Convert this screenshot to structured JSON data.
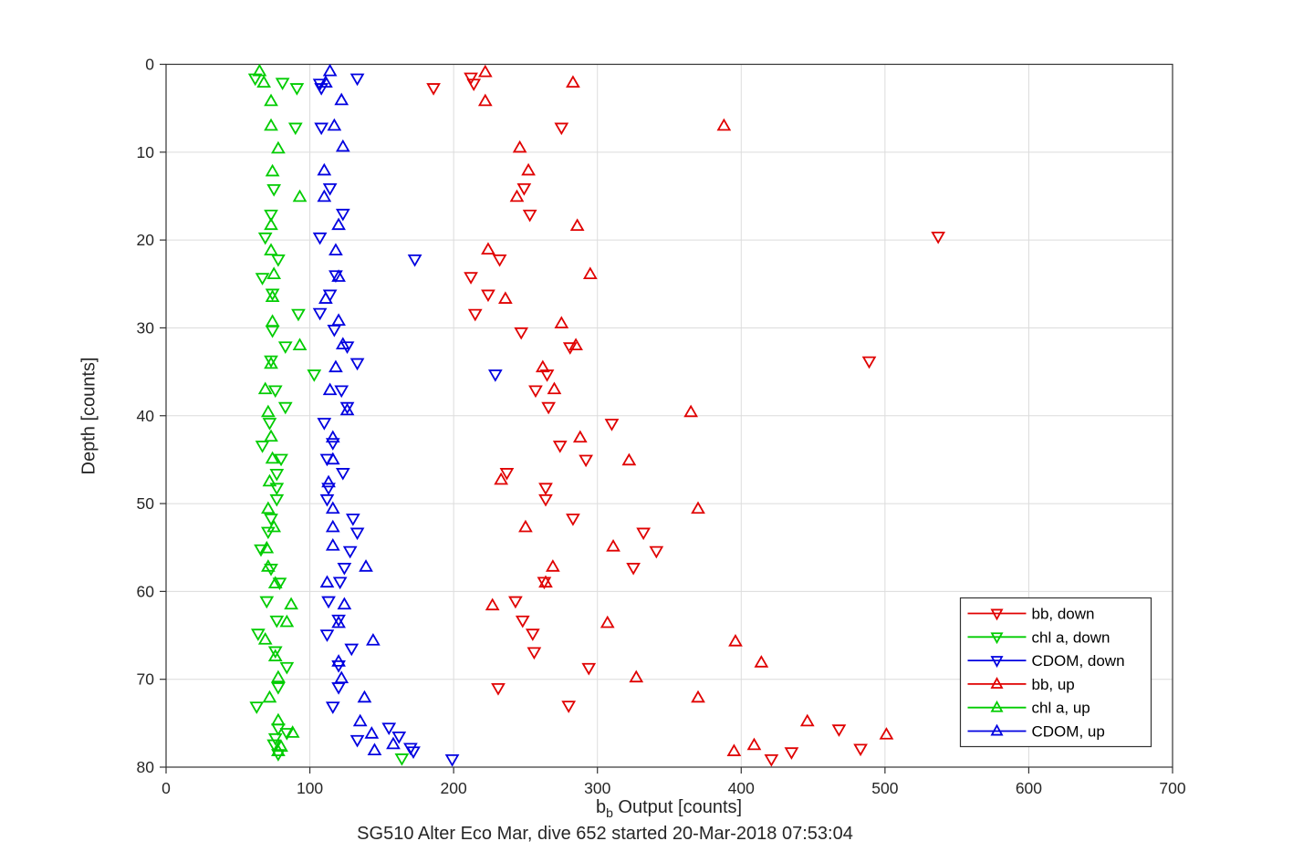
{
  "figure": {
    "xlabel_main": "b",
    "xlabel_sub": "b",
    "xlabel_rest": " Output [counts]"
  },
  "chart_data": {
    "type": "scatter",
    "title": "SG510 Alter Eco Mar, dive 652 started 20-Mar-2018 07:53:04",
    "xlabel": "b_b Output [counts]",
    "ylabel": "Depth [counts]",
    "xlim": [
      0,
      700
    ],
    "ylim": [
      0,
      80
    ],
    "y_axis_reversed": true,
    "xticks": [
      0,
      100,
      200,
      300,
      400,
      500,
      600,
      700
    ],
    "yticks": [
      0,
      10,
      20,
      30,
      40,
      50,
      60,
      70,
      80
    ],
    "grid": true,
    "axis_color": "#333333",
    "grid_color": "#dcdcdc",
    "legend_position": "lower-right-inside",
    "series": [
      {
        "name": "bb, down",
        "color": "#e00000",
        "marker": "triangle-down",
        "points": [
          [
            212,
            1.5
          ],
          [
            214,
            2.2
          ],
          [
            186,
            2.7
          ],
          [
            275,
            7.2
          ],
          [
            249,
            14.1
          ],
          [
            253,
            17.1
          ],
          [
            537,
            19.6
          ],
          [
            232,
            22.2
          ],
          [
            212,
            24.2
          ],
          [
            224,
            26.2
          ],
          [
            215,
            28.4
          ],
          [
            247,
            30.5
          ],
          [
            281,
            32.2
          ],
          [
            489,
            33.8
          ],
          [
            265,
            35.3
          ],
          [
            257,
            37.1
          ],
          [
            266,
            39.0
          ],
          [
            310,
            40.9
          ],
          [
            274,
            43.4
          ],
          [
            292,
            45.0
          ],
          [
            237,
            46.5
          ],
          [
            264,
            48.2
          ],
          [
            264,
            49.5
          ],
          [
            283,
            51.7
          ],
          [
            332,
            53.3
          ],
          [
            341,
            55.4
          ],
          [
            325,
            57.3
          ],
          [
            263,
            58.9
          ],
          [
            243,
            61.1
          ],
          [
            248,
            63.3
          ],
          [
            255,
            64.8
          ],
          [
            256,
            66.9
          ],
          [
            294,
            68.7
          ],
          [
            231,
            71.0
          ],
          [
            280,
            73.0
          ],
          [
            468,
            75.7
          ],
          [
            483,
            77.9
          ],
          [
            435,
            78.3
          ],
          [
            421,
            79.1
          ]
        ]
      },
      {
        "name": "chl a, down",
        "color": "#00cc00",
        "marker": "triangle-down",
        "points": [
          [
            62,
            1.6
          ],
          [
            81,
            2.1
          ],
          [
            91,
            2.7
          ],
          [
            90,
            7.2
          ],
          [
            75,
            14.2
          ],
          [
            73,
            17.1
          ],
          [
            69,
            19.7
          ],
          [
            78,
            22.2
          ],
          [
            67,
            24.3
          ],
          [
            74,
            26.1
          ],
          [
            92,
            28.4
          ],
          [
            74,
            30.3
          ],
          [
            83,
            32.1
          ],
          [
            73,
            33.7
          ],
          [
            103,
            35.3
          ],
          [
            76,
            37.1
          ],
          [
            83,
            39.0
          ],
          [
            72,
            40.8
          ],
          [
            67,
            43.4
          ],
          [
            80,
            44.9
          ],
          [
            77,
            46.6
          ],
          [
            77,
            48.2
          ],
          [
            77,
            49.5
          ],
          [
            73,
            51.7
          ],
          [
            71,
            53.2
          ],
          [
            66,
            55.2
          ],
          [
            73,
            57.4
          ],
          [
            79,
            59.0
          ],
          [
            70,
            61.1
          ],
          [
            77,
            63.3
          ],
          [
            64,
            64.8
          ],
          [
            76,
            66.8
          ],
          [
            84,
            68.6
          ],
          [
            78,
            70.9
          ],
          [
            63,
            73.1
          ],
          [
            78,
            75.6
          ],
          [
            84,
            76.1
          ],
          [
            76,
            76.7
          ],
          [
            75,
            77.4
          ],
          [
            78,
            78.5
          ],
          [
            164,
            79.0
          ]
        ]
      },
      {
        "name": "CDOM, down",
        "color": "#0000e0",
        "marker": "triangle-down",
        "points": [
          [
            133,
            1.6
          ],
          [
            107,
            2.2
          ],
          [
            108,
            2.7
          ],
          [
            108,
            7.2
          ],
          [
            114,
            14.1
          ],
          [
            123,
            17.0
          ],
          [
            107,
            19.7
          ],
          [
            173,
            22.2
          ],
          [
            118,
            24.0
          ],
          [
            114,
            26.2
          ],
          [
            107,
            28.3
          ],
          [
            117,
            30.2
          ],
          [
            126,
            32.1
          ],
          [
            133,
            34.0
          ],
          [
            229,
            35.3
          ],
          [
            122,
            37.1
          ],
          [
            126,
            39.0
          ],
          [
            110,
            40.8
          ],
          [
            116,
            43.1
          ],
          [
            112,
            44.9
          ],
          [
            123,
            46.5
          ],
          [
            113,
            48.2
          ],
          [
            112,
            49.5
          ],
          [
            130,
            51.7
          ],
          [
            133,
            53.3
          ],
          [
            128,
            55.4
          ],
          [
            124,
            57.3
          ],
          [
            121,
            58.9
          ],
          [
            113,
            61.1
          ],
          [
            120,
            63.2
          ],
          [
            112,
            64.9
          ],
          [
            129,
            66.5
          ],
          [
            120,
            68.4
          ],
          [
            120,
            70.9
          ],
          [
            116,
            73.1
          ],
          [
            155,
            75.5
          ],
          [
            162,
            76.5
          ],
          [
            133,
            76.9
          ],
          [
            170,
            77.8
          ],
          [
            172,
            78.2
          ],
          [
            199,
            79.1
          ]
        ]
      },
      {
        "name": "bb, up",
        "color": "#e00000",
        "marker": "triangle-up",
        "points": [
          [
            222,
            0.9
          ],
          [
            283,
            2.1
          ],
          [
            222,
            4.2
          ],
          [
            388,
            7.0
          ],
          [
            246,
            9.5
          ],
          [
            252,
            12.1
          ],
          [
            244,
            15.1
          ],
          [
            286,
            18.4
          ],
          [
            224,
            21.1
          ],
          [
            295,
            23.9
          ],
          [
            236,
            26.7
          ],
          [
            275,
            29.5
          ],
          [
            285,
            32.0
          ],
          [
            262,
            34.5
          ],
          [
            270,
            37.0
          ],
          [
            365,
            39.6
          ],
          [
            288,
            42.5
          ],
          [
            322,
            45.1
          ],
          [
            233,
            47.3
          ],
          [
            370,
            50.6
          ],
          [
            250,
            52.7
          ],
          [
            311,
            54.9
          ],
          [
            269,
            57.2
          ],
          [
            264,
            59.0
          ],
          [
            227,
            61.6
          ],
          [
            307,
            63.6
          ],
          [
            396,
            65.7
          ],
          [
            414,
            68.1
          ],
          [
            327,
            69.8
          ],
          [
            370,
            72.1
          ],
          [
            446,
            74.8
          ],
          [
            501,
            76.3
          ],
          [
            409,
            77.5
          ],
          [
            395,
            78.2
          ]
        ]
      },
      {
        "name": "chl a, up",
        "color": "#00cc00",
        "marker": "triangle-up",
        "points": [
          [
            65,
            0.8
          ],
          [
            68,
            2.1
          ],
          [
            73,
            4.2
          ],
          [
            73,
            7.0
          ],
          [
            78,
            9.6
          ],
          [
            74,
            12.2
          ],
          [
            93,
            15.1
          ],
          [
            73,
            18.3
          ],
          [
            73,
            21.2
          ],
          [
            75,
            23.9
          ],
          [
            74,
            26.5
          ],
          [
            74,
            29.3
          ],
          [
            93,
            32.0
          ],
          [
            73,
            34.1
          ],
          [
            69,
            37.0
          ],
          [
            71,
            39.6
          ],
          [
            73,
            42.4
          ],
          [
            74,
            44.9
          ],
          [
            72,
            47.5
          ],
          [
            71,
            50.6
          ],
          [
            75,
            52.7
          ],
          [
            70,
            55.1
          ],
          [
            71,
            57.2
          ],
          [
            76,
            59.1
          ],
          [
            87,
            61.5
          ],
          [
            84,
            63.5
          ],
          [
            69,
            65.5
          ],
          [
            76,
            67.4
          ],
          [
            78,
            69.8
          ],
          [
            72,
            72.1
          ],
          [
            78,
            74.7
          ],
          [
            88,
            76.1
          ],
          [
            80,
            77.7
          ],
          [
            78,
            78.2
          ]
        ]
      },
      {
        "name": "CDOM, up",
        "color": "#0000e0",
        "marker": "triangle-up",
        "points": [
          [
            114,
            0.8
          ],
          [
            111,
            2.1
          ],
          [
            122,
            4.1
          ],
          [
            117,
            7.0
          ],
          [
            123,
            9.4
          ],
          [
            110,
            12.1
          ],
          [
            110,
            15.1
          ],
          [
            120,
            18.3
          ],
          [
            118,
            21.2
          ],
          [
            120,
            24.2
          ],
          [
            111,
            26.7
          ],
          [
            120,
            29.2
          ],
          [
            123,
            31.9
          ],
          [
            118,
            34.5
          ],
          [
            114,
            37.1
          ],
          [
            126,
            39.4
          ],
          [
            116,
            42.5
          ],
          [
            116,
            45.0
          ],
          [
            113,
            47.6
          ],
          [
            116,
            50.6
          ],
          [
            116,
            52.7
          ],
          [
            116,
            54.8
          ],
          [
            139,
            57.2
          ],
          [
            112,
            59.0
          ],
          [
            124,
            61.5
          ],
          [
            120,
            63.6
          ],
          [
            144,
            65.6
          ],
          [
            120,
            68.0
          ],
          [
            122,
            69.9
          ],
          [
            138,
            72.1
          ],
          [
            135,
            74.8
          ],
          [
            143,
            76.2
          ],
          [
            158,
            77.4
          ],
          [
            145,
            78.1
          ]
        ]
      }
    ]
  }
}
